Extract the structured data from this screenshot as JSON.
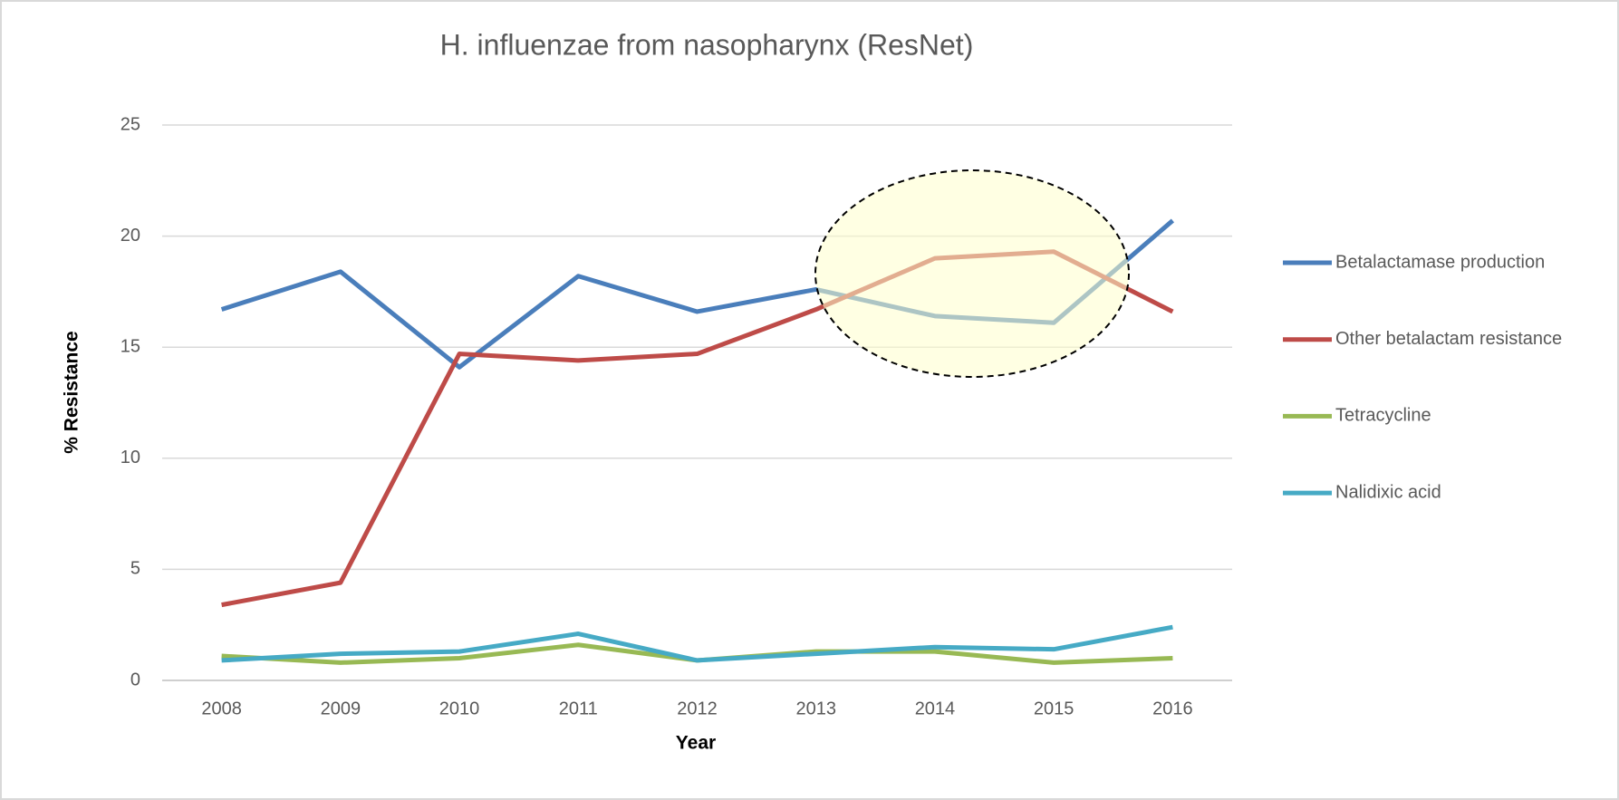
{
  "chart_data": {
    "type": "line",
    "title": "H. influenzae from nasopharynx (ResNet)",
    "x_label": "Year",
    "y_label": "% Resistance",
    "categories": [
      "2008",
      "2009",
      "2010",
      "2011",
      "2012",
      "2013",
      "2014",
      "2015",
      "2016"
    ],
    "series": [
      {
        "name": "Betalactamase production",
        "color": "#4a7ebb",
        "values": [
          16.7,
          18.4,
          14.1,
          18.2,
          16.6,
          17.6,
          16.4,
          16.1,
          20.7
        ]
      },
      {
        "name": "Other betalactam resistance",
        "color": "#be4b48",
        "values": [
          3.4,
          4.4,
          14.7,
          14.4,
          14.7,
          16.7,
          19.0,
          19.3,
          16.6
        ]
      },
      {
        "name": "Tetracycline",
        "color": "#98b954",
        "values": [
          1.1,
          0.8,
          1.0,
          1.6,
          0.9,
          1.3,
          1.3,
          0.8,
          1.0
        ]
      },
      {
        "name": "Nalidixic acid",
        "color": "#46aac5",
        "values": [
          0.9,
          1.2,
          1.3,
          2.1,
          0.9,
          1.2,
          1.5,
          1.4,
          2.4
        ]
      }
    ],
    "ylim": [
      0,
      25
    ],
    "yticks": [
      0,
      5,
      10,
      15,
      20,
      25
    ],
    "grid": true,
    "legend": "right"
  }
}
